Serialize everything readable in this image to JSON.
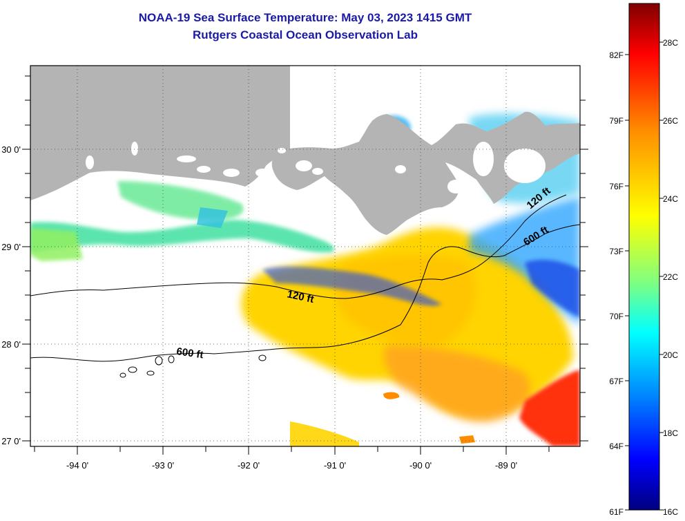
{
  "title": {
    "line1": "NOAA-19 Sea Surface Temperature:  May 03, 2023 1415 GMT",
    "line2": "Rutgers Coastal Ocean Observation Lab"
  },
  "map": {
    "lon_range": [
      -94.55,
      -88.3
    ],
    "lat_range": [
      26.95,
      30.85
    ],
    "lon_ticks": [
      {
        "value": -94,
        "label": "-94 0'"
      },
      {
        "value": -93,
        "label": "-93 0'"
      },
      {
        "value": -92,
        "label": "-92 0'"
      },
      {
        "value": -91,
        "label": "-91 0'"
      },
      {
        "value": -90,
        "label": "-90 0'"
      },
      {
        "value": -89,
        "label": "-89 0'"
      }
    ],
    "lat_ticks": [
      {
        "value": 27,
        "label": "27 0'"
      },
      {
        "value": 28,
        "label": "28 0'"
      },
      {
        "value": 29,
        "label": "29 0'"
      },
      {
        "value": 30,
        "label": "30 0'"
      }
    ],
    "contour_labels": [
      "120 ft",
      "600 ft",
      "120 ft",
      "600 ft"
    ],
    "colors": {
      "land": "#b4b4b4",
      "cloud": "#ffffff",
      "frame": "#000000",
      "title": "#1a1aa6"
    }
  },
  "colorbar": {
    "min_c": 16,
    "max_c": 29.4,
    "celsius_labels": [
      "28C",
      "26C",
      "24C",
      "22C",
      "20C",
      "18C",
      "16C"
    ],
    "fahrenheit_labels": [
      "82F",
      "79F",
      "76F",
      "73F",
      "70F",
      "67F",
      "64F",
      "61F"
    ],
    "stops": [
      "#7f0000",
      "#ff0000",
      "#ff8c00",
      "#ffff00",
      "#80ff80",
      "#00ffff",
      "#0080ff",
      "#0000ff",
      "#000080"
    ]
  }
}
